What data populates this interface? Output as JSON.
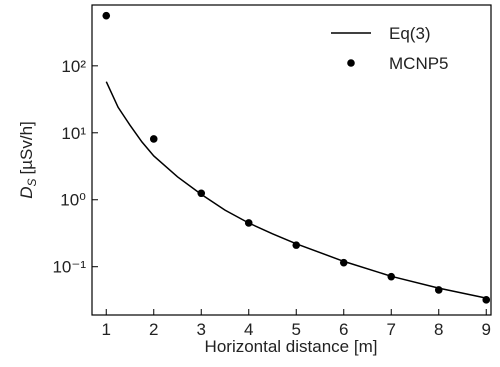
{
  "chart_data": {
    "type": "line",
    "x_label": "Horizontal distance [m]",
    "y_label": "D",
    "y_label_sub": "S",
    "y_label_unit": "[µSv/h]",
    "xlim": [
      0.7,
      9.1
    ],
    "xticks": [
      1,
      2,
      3,
      4,
      5,
      6,
      7,
      8,
      9
    ],
    "ylim": [
      0.019,
      810
    ],
    "y_scale": "log",
    "yticks": [
      {
        "value": 0.1,
        "label": "10⁻¹"
      },
      {
        "value": 1,
        "label": "10⁰"
      },
      {
        "value": 10,
        "label": "10¹"
      },
      {
        "value": 100,
        "label": "10²"
      }
    ],
    "legend": "upper right",
    "series": [
      {
        "name": "Eq(3)",
        "color": "#000000",
        "mode": "line",
        "x": [
          1,
          1.25,
          1.5,
          1.75,
          2,
          2.5,
          3,
          3.5,
          4,
          4.5,
          5,
          6,
          7,
          8,
          9
        ],
        "values": [
          58,
          24,
          13,
          7.3,
          4.5,
          2.2,
          1.2,
          0.7,
          0.45,
          0.31,
          0.22,
          0.12,
          0.072,
          0.048,
          0.034
        ]
      },
      {
        "name": "MCNP5",
        "color": "#000000",
        "mode": "markers",
        "x": [
          1,
          2,
          3,
          4,
          5,
          6,
          7,
          8,
          9
        ],
        "values": [
          560,
          8.1,
          1.25,
          0.45,
          0.21,
          0.115,
          0.071,
          0.045,
          0.032
        ]
      }
    ]
  }
}
